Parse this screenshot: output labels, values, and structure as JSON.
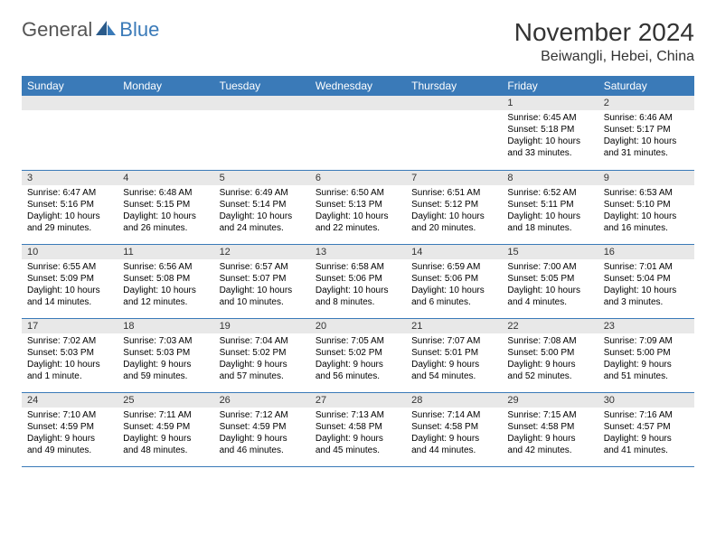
{
  "brand": {
    "general": "General",
    "blue": "Blue"
  },
  "title": "November 2024",
  "location": "Beiwangli, Hebei, China",
  "colors": {
    "accent": "#3a7ab8",
    "header_bg": "#3a7ab8",
    "daynum_bg": "#e8e8e8"
  },
  "weekdays": [
    "Sunday",
    "Monday",
    "Tuesday",
    "Wednesday",
    "Thursday",
    "Friday",
    "Saturday"
  ],
  "days": {
    "1": {
      "sunrise": "Sunrise: 6:45 AM",
      "sunset": "Sunset: 5:18 PM",
      "daylight": "Daylight: 10 hours and 33 minutes."
    },
    "2": {
      "sunrise": "Sunrise: 6:46 AM",
      "sunset": "Sunset: 5:17 PM",
      "daylight": "Daylight: 10 hours and 31 minutes."
    },
    "3": {
      "sunrise": "Sunrise: 6:47 AM",
      "sunset": "Sunset: 5:16 PM",
      "daylight": "Daylight: 10 hours and 29 minutes."
    },
    "4": {
      "sunrise": "Sunrise: 6:48 AM",
      "sunset": "Sunset: 5:15 PM",
      "daylight": "Daylight: 10 hours and 26 minutes."
    },
    "5": {
      "sunrise": "Sunrise: 6:49 AM",
      "sunset": "Sunset: 5:14 PM",
      "daylight": "Daylight: 10 hours and 24 minutes."
    },
    "6": {
      "sunrise": "Sunrise: 6:50 AM",
      "sunset": "Sunset: 5:13 PM",
      "daylight": "Daylight: 10 hours and 22 minutes."
    },
    "7": {
      "sunrise": "Sunrise: 6:51 AM",
      "sunset": "Sunset: 5:12 PM",
      "daylight": "Daylight: 10 hours and 20 minutes."
    },
    "8": {
      "sunrise": "Sunrise: 6:52 AM",
      "sunset": "Sunset: 5:11 PM",
      "daylight": "Daylight: 10 hours and 18 minutes."
    },
    "9": {
      "sunrise": "Sunrise: 6:53 AM",
      "sunset": "Sunset: 5:10 PM",
      "daylight": "Daylight: 10 hours and 16 minutes."
    },
    "10": {
      "sunrise": "Sunrise: 6:55 AM",
      "sunset": "Sunset: 5:09 PM",
      "daylight": "Daylight: 10 hours and 14 minutes."
    },
    "11": {
      "sunrise": "Sunrise: 6:56 AM",
      "sunset": "Sunset: 5:08 PM",
      "daylight": "Daylight: 10 hours and 12 minutes."
    },
    "12": {
      "sunrise": "Sunrise: 6:57 AM",
      "sunset": "Sunset: 5:07 PM",
      "daylight": "Daylight: 10 hours and 10 minutes."
    },
    "13": {
      "sunrise": "Sunrise: 6:58 AM",
      "sunset": "Sunset: 5:06 PM",
      "daylight": "Daylight: 10 hours and 8 minutes."
    },
    "14": {
      "sunrise": "Sunrise: 6:59 AM",
      "sunset": "Sunset: 5:06 PM",
      "daylight": "Daylight: 10 hours and 6 minutes."
    },
    "15": {
      "sunrise": "Sunrise: 7:00 AM",
      "sunset": "Sunset: 5:05 PM",
      "daylight": "Daylight: 10 hours and 4 minutes."
    },
    "16": {
      "sunrise": "Sunrise: 7:01 AM",
      "sunset": "Sunset: 5:04 PM",
      "daylight": "Daylight: 10 hours and 3 minutes."
    },
    "17": {
      "sunrise": "Sunrise: 7:02 AM",
      "sunset": "Sunset: 5:03 PM",
      "daylight": "Daylight: 10 hours and 1 minute."
    },
    "18": {
      "sunrise": "Sunrise: 7:03 AM",
      "sunset": "Sunset: 5:03 PM",
      "daylight": "Daylight: 9 hours and 59 minutes."
    },
    "19": {
      "sunrise": "Sunrise: 7:04 AM",
      "sunset": "Sunset: 5:02 PM",
      "daylight": "Daylight: 9 hours and 57 minutes."
    },
    "20": {
      "sunrise": "Sunrise: 7:05 AM",
      "sunset": "Sunset: 5:02 PM",
      "daylight": "Daylight: 9 hours and 56 minutes."
    },
    "21": {
      "sunrise": "Sunrise: 7:07 AM",
      "sunset": "Sunset: 5:01 PM",
      "daylight": "Daylight: 9 hours and 54 minutes."
    },
    "22": {
      "sunrise": "Sunrise: 7:08 AM",
      "sunset": "Sunset: 5:00 PM",
      "daylight": "Daylight: 9 hours and 52 minutes."
    },
    "23": {
      "sunrise": "Sunrise: 7:09 AM",
      "sunset": "Sunset: 5:00 PM",
      "daylight": "Daylight: 9 hours and 51 minutes."
    },
    "24": {
      "sunrise": "Sunrise: 7:10 AM",
      "sunset": "Sunset: 4:59 PM",
      "daylight": "Daylight: 9 hours and 49 minutes."
    },
    "25": {
      "sunrise": "Sunrise: 7:11 AM",
      "sunset": "Sunset: 4:59 PM",
      "daylight": "Daylight: 9 hours and 48 minutes."
    },
    "26": {
      "sunrise": "Sunrise: 7:12 AM",
      "sunset": "Sunset: 4:59 PM",
      "daylight": "Daylight: 9 hours and 46 minutes."
    },
    "27": {
      "sunrise": "Sunrise: 7:13 AM",
      "sunset": "Sunset: 4:58 PM",
      "daylight": "Daylight: 9 hours and 45 minutes."
    },
    "28": {
      "sunrise": "Sunrise: 7:14 AM",
      "sunset": "Sunset: 4:58 PM",
      "daylight": "Daylight: 9 hours and 44 minutes."
    },
    "29": {
      "sunrise": "Sunrise: 7:15 AM",
      "sunset": "Sunset: 4:58 PM",
      "daylight": "Daylight: 9 hours and 42 minutes."
    },
    "30": {
      "sunrise": "Sunrise: 7:16 AM",
      "sunset": "Sunset: 4:57 PM",
      "daylight": "Daylight: 9 hours and 41 minutes."
    }
  },
  "grid": [
    [
      null,
      null,
      null,
      null,
      null,
      "1",
      "2"
    ],
    [
      "3",
      "4",
      "5",
      "6",
      "7",
      "8",
      "9"
    ],
    [
      "10",
      "11",
      "12",
      "13",
      "14",
      "15",
      "16"
    ],
    [
      "17",
      "18",
      "19",
      "20",
      "21",
      "22",
      "23"
    ],
    [
      "24",
      "25",
      "26",
      "27",
      "28",
      "29",
      "30"
    ]
  ]
}
